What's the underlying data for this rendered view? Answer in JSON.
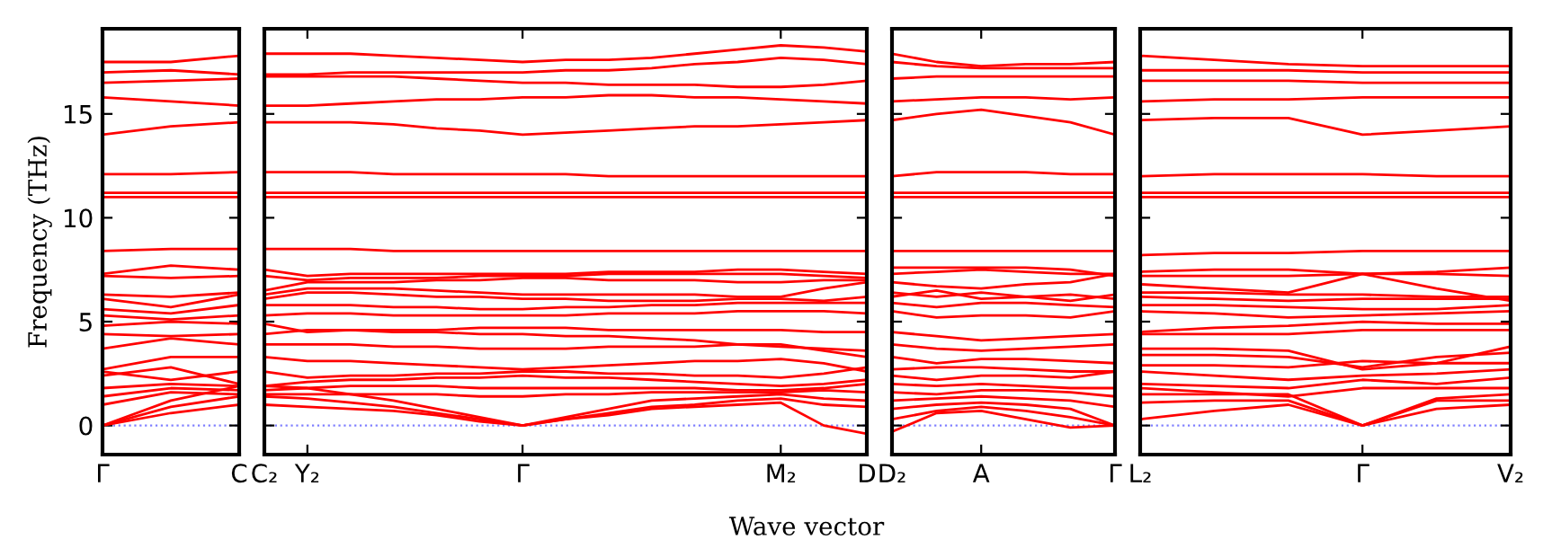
{
  "chart_data": [
    {
      "type": "line",
      "ylabel": "Frequency (THz)",
      "categories": [
        "Γ",
        null,
        "C"
      ],
      "ylim": [
        -1.4,
        19.1
      ],
      "yticks": [
        0,
        5,
        10,
        15
      ],
      "ref_lines": [
        {
          "axis": "y",
          "value": 0,
          "color": "#8080ff",
          "line_style": "dotted"
        }
      ],
      "series": [
        {
          "color": "#ff0000",
          "values": [
            17.5,
            17.5,
            17.8
          ]
        },
        {
          "color": "#ff0000",
          "values": [
            17.0,
            17.1,
            16.9
          ]
        },
        {
          "color": "#ff0000",
          "values": [
            16.5,
            16.6,
            16.7
          ]
        },
        {
          "color": "#ff0000",
          "values": [
            15.8,
            15.6,
            15.4
          ]
        },
        {
          "color": "#ff0000",
          "values": [
            14.0,
            14.4,
            14.6
          ]
        },
        {
          "color": "#ff0000",
          "values": [
            12.1,
            12.1,
            12.2
          ]
        },
        {
          "color": "#ff0000",
          "values": [
            11.2,
            11.2,
            11.2
          ]
        },
        {
          "color": "#ff0000",
          "values": [
            11.0,
            11.0,
            11.0
          ]
        },
        {
          "color": "#ff0000",
          "values": [
            8.4,
            8.5,
            8.5
          ]
        },
        {
          "color": "#ff0000",
          "values": [
            7.3,
            7.7,
            7.5
          ]
        },
        {
          "color": "#ff0000",
          "values": [
            7.2,
            7.1,
            7.2
          ]
        },
        {
          "color": "#ff0000",
          "values": [
            6.3,
            6.2,
            6.4
          ]
        },
        {
          "color": "#ff0000",
          "values": [
            6.1,
            5.7,
            6.3
          ]
        },
        {
          "color": "#ff0000",
          "values": [
            5.6,
            5.4,
            5.8
          ]
        },
        {
          "color": "#ff0000",
          "values": [
            5.3,
            5.1,
            5.3
          ]
        },
        {
          "color": "#ff0000",
          "values": [
            4.8,
            5.0,
            4.9
          ]
        },
        {
          "color": "#ff0000",
          "values": [
            4.4,
            4.3,
            4.4
          ]
        },
        {
          "color": "#ff0000",
          "values": [
            3.7,
            4.2,
            3.9
          ]
        },
        {
          "color": "#ff0000",
          "values": [
            2.7,
            3.3,
            3.3
          ]
        },
        {
          "color": "#ff0000",
          "values": [
            2.4,
            2.8,
            2.0
          ]
        },
        {
          "color": "#ff0000",
          "values": [
            2.6,
            2.2,
            2.6
          ]
        },
        {
          "color": "#ff0000",
          "values": [
            1.8,
            2.0,
            1.9
          ]
        },
        {
          "color": "#ff0000",
          "values": [
            1.4,
            1.8,
            1.7
          ]
        },
        {
          "color": "#ff0000",
          "values": [
            1.0,
            1.6,
            1.5
          ]
        },
        {
          "color": "#ff0000",
          "values": [
            0,
            1.2,
            1.9
          ]
        },
        {
          "color": "#ff0000",
          "values": [
            0,
            0.9,
            1.4
          ]
        },
        {
          "color": "#ff0000",
          "values": [
            0,
            0.6,
            1.0
          ]
        }
      ]
    },
    {
      "type": "line",
      "xlabel": "Wave vector",
      "tick_labels": "x",
      "categories": [
        "C₂",
        "Y₂",
        null,
        null,
        null,
        null,
        "Γ",
        null,
        null,
        null,
        null,
        null,
        "M₂",
        null,
        "D"
      ],
      "ylim": [
        -1.4,
        19.1
      ],
      "yticks": [
        0,
        5,
        10,
        15
      ],
      "ref_lines": [
        {
          "axis": "y",
          "value": 0,
          "color": "#8080ff",
          "line_style": "dotted"
        }
      ],
      "series": [
        {
          "color": "#ff0000",
          "values": [
            17.9,
            17.9,
            17.9,
            17.8,
            17.7,
            17.6,
            17.5,
            17.6,
            17.6,
            17.7,
            17.9,
            18.1,
            18.3,
            18.2,
            18.0
          ]
        },
        {
          "color": "#ff0000",
          "values": [
            16.9,
            16.9,
            17.0,
            17.0,
            17.0,
            17.0,
            17.0,
            17.1,
            17.1,
            17.2,
            17.4,
            17.5,
            17.7,
            17.6,
            17.4
          ]
        },
        {
          "color": "#ff0000",
          "values": [
            16.8,
            16.8,
            16.8,
            16.8,
            16.7,
            16.6,
            16.5,
            16.5,
            16.4,
            16.4,
            16.4,
            16.3,
            16.3,
            16.4,
            16.6
          ]
        },
        {
          "color": "#ff0000",
          "values": [
            15.4,
            15.4,
            15.5,
            15.6,
            15.7,
            15.7,
            15.8,
            15.8,
            15.9,
            15.9,
            15.8,
            15.8,
            15.7,
            15.6,
            15.5
          ]
        },
        {
          "color": "#ff0000",
          "values": [
            14.6,
            14.6,
            14.6,
            14.5,
            14.3,
            14.2,
            14.0,
            14.1,
            14.2,
            14.3,
            14.4,
            14.4,
            14.5,
            14.6,
            14.7
          ]
        },
        {
          "color": "#ff0000",
          "values": [
            12.2,
            12.2,
            12.2,
            12.1,
            12.1,
            12.1,
            12.1,
            12.1,
            12.0,
            12.0,
            12.0,
            12.0,
            12.0,
            12.0,
            12.0
          ]
        },
        {
          "color": "#ff0000",
          "values": [
            11.2,
            11.2,
            11.2,
            11.2,
            11.2,
            11.2,
            11.2,
            11.2,
            11.2,
            11.2,
            11.2,
            11.2,
            11.2,
            11.2,
            11.2
          ]
        },
        {
          "color": "#ff0000",
          "values": [
            11.0,
            11.0,
            11.0,
            11.0,
            11.0,
            11.0,
            11.0,
            11.0,
            11.0,
            11.0,
            11.0,
            11.0,
            11.0,
            11.0,
            11.0
          ]
        },
        {
          "color": "#ff0000",
          "values": [
            8.5,
            8.5,
            8.5,
            8.4,
            8.4,
            8.4,
            8.4,
            8.4,
            8.4,
            8.4,
            8.4,
            8.4,
            8.4,
            8.4,
            8.4
          ]
        },
        {
          "color": "#ff0000",
          "values": [
            7.5,
            7.2,
            7.3,
            7.3,
            7.3,
            7.3,
            7.3,
            7.3,
            7.4,
            7.4,
            7.4,
            7.5,
            7.5,
            7.4,
            7.3
          ]
        },
        {
          "color": "#ff0000",
          "values": [
            7.2,
            7.0,
            7.1,
            7.1,
            7.1,
            7.2,
            7.2,
            7.2,
            7.3,
            7.3,
            7.3,
            7.3,
            7.3,
            7.2,
            7.1
          ]
        },
        {
          "color": "#ff0000",
          "values": [
            6.5,
            6.9,
            6.9,
            6.9,
            7.0,
            7.0,
            7.1,
            7.1,
            7.0,
            7.0,
            7.0,
            6.9,
            6.9,
            7.0,
            7.0
          ]
        },
        {
          "color": "#ff0000",
          "values": [
            6.3,
            6.6,
            6.6,
            6.6,
            6.5,
            6.4,
            6.3,
            6.3,
            6.3,
            6.3,
            6.3,
            6.2,
            6.2,
            6.6,
            6.9
          ]
        },
        {
          "color": "#ff0000",
          "values": [
            6.1,
            6.4,
            6.4,
            6.3,
            6.2,
            6.2,
            6.1,
            6.1,
            6.0,
            6.0,
            6.0,
            6.1,
            6.1,
            6.0,
            6.2
          ]
        },
        {
          "color": "#ff0000",
          "values": [
            5.8,
            5.8,
            5.8,
            5.7,
            5.7,
            5.6,
            5.6,
            5.7,
            5.7,
            5.8,
            5.8,
            5.9,
            5.9,
            5.9,
            5.9
          ]
        },
        {
          "color": "#ff0000",
          "values": [
            5.3,
            5.4,
            5.4,
            5.3,
            5.3,
            5.3,
            5.3,
            5.3,
            5.4,
            5.4,
            5.4,
            5.5,
            5.5,
            5.5,
            5.4
          ]
        },
        {
          "color": "#ff0000",
          "values": [
            4.9,
            4.5,
            4.6,
            4.6,
            4.6,
            4.7,
            4.7,
            4.7,
            4.6,
            4.6,
            4.6,
            4.6,
            4.6,
            4.5,
            4.5
          ]
        },
        {
          "color": "#ff0000",
          "values": [
            4.4,
            4.6,
            4.6,
            4.5,
            4.5,
            4.4,
            4.4,
            4.3,
            4.3,
            4.2,
            4.1,
            3.9,
            3.8,
            3.7,
            3.6
          ]
        },
        {
          "color": "#ff0000",
          "values": [
            3.9,
            3.9,
            3.9,
            3.8,
            3.8,
            3.7,
            3.7,
            3.7,
            3.8,
            3.8,
            3.8,
            3.9,
            3.9,
            3.6,
            3.3
          ]
        },
        {
          "color": "#ff0000",
          "values": [
            3.3,
            3.1,
            3.1,
            3.0,
            2.9,
            2.8,
            2.7,
            2.8,
            2.9,
            3.0,
            3.1,
            3.1,
            3.2,
            3.0,
            2.6
          ]
        },
        {
          "color": "#ff0000",
          "values": [
            2.6,
            2.3,
            2.4,
            2.4,
            2.5,
            2.5,
            2.6,
            2.6,
            2.5,
            2.5,
            2.4,
            2.4,
            2.3,
            2.5,
            2.8
          ]
        },
        {
          "color": "#ff0000",
          "values": [
            1.9,
            2.1,
            2.2,
            2.2,
            2.3,
            2.3,
            2.4,
            2.3,
            2.3,
            2.2,
            2.1,
            2.0,
            1.9,
            2.0,
            2.2
          ]
        },
        {
          "color": "#ff0000",
          "values": [
            1.7,
            1.8,
            1.9,
            1.9,
            1.9,
            1.8,
            1.8,
            1.8,
            1.8,
            1.8,
            1.8,
            1.7,
            1.7,
            1.8,
            2.0
          ]
        },
        {
          "color": "#ff0000",
          "values": [
            1.5,
            1.5,
            1.5,
            1.5,
            1.5,
            1.4,
            1.4,
            1.5,
            1.5,
            1.6,
            1.6,
            1.6,
            1.6,
            1.7,
            1.6
          ]
        },
        {
          "color": "#ff0000",
          "values": [
            1.9,
            1.8,
            1.5,
            1.2,
            0.8,
            0.4,
            0,
            0.4,
            0.8,
            1.2,
            1.3,
            1.4,
            1.5,
            1.3,
            1.2
          ]
        },
        {
          "color": "#ff0000",
          "values": [
            1.4,
            1.3,
            1.1,
            0.9,
            0.6,
            0.3,
            0,
            0.3,
            0.6,
            0.9,
            1.0,
            1.2,
            1.3,
            1.0,
            0.9
          ]
        },
        {
          "color": "#ff0000",
          "values": [
            1.0,
            0.9,
            0.8,
            0.7,
            0.5,
            0.2,
            0,
            0.3,
            0.5,
            0.8,
            0.9,
            1.0,
            1.1,
            0.0,
            -0.4
          ]
        }
      ]
    },
    {
      "type": "line",
      "tick_labels": "x",
      "categories": [
        "D₂",
        null,
        "A",
        null,
        null,
        "Γ"
      ],
      "ylim": [
        -1.4,
        19.1
      ],
      "yticks": [
        0,
        5,
        10,
        15
      ],
      "ref_lines": [
        {
          "axis": "y",
          "value": 0,
          "color": "#8080ff",
          "line_style": "dotted"
        }
      ],
      "series": [
        {
          "color": "#ff0000",
          "values": [
            17.9,
            17.5,
            17.3,
            17.4,
            17.4,
            17.5
          ]
        },
        {
          "color": "#ff0000",
          "values": [
            17.5,
            17.3,
            17.2,
            17.2,
            17.2,
            17.2
          ]
        },
        {
          "color": "#ff0000",
          "values": [
            16.7,
            16.8,
            16.8,
            16.8,
            16.8,
            16.8
          ]
        },
        {
          "color": "#ff0000",
          "values": [
            15.6,
            15.7,
            15.8,
            15.8,
            15.7,
            15.8
          ]
        },
        {
          "color": "#ff0000",
          "values": [
            14.7,
            15.0,
            15.2,
            14.9,
            14.6,
            14.0
          ]
        },
        {
          "color": "#ff0000",
          "values": [
            12.0,
            12.2,
            12.2,
            12.2,
            12.1,
            12.1
          ]
        },
        {
          "color": "#ff0000",
          "values": [
            11.2,
            11.2,
            11.2,
            11.2,
            11.2,
            11.2
          ]
        },
        {
          "color": "#ff0000",
          "values": [
            11.0,
            11.0,
            11.0,
            11.0,
            11.0,
            11.0
          ]
        },
        {
          "color": "#ff0000",
          "values": [
            8.4,
            8.4,
            8.4,
            8.4,
            8.4,
            8.4
          ]
        },
        {
          "color": "#ff0000",
          "values": [
            7.6,
            7.6,
            7.6,
            7.6,
            7.5,
            7.2
          ]
        },
        {
          "color": "#ff0000",
          "values": [
            7.3,
            7.4,
            7.5,
            7.4,
            7.3,
            7.3
          ]
        },
        {
          "color": "#ff0000",
          "values": [
            6.9,
            6.7,
            6.6,
            6.8,
            6.9,
            7.3
          ]
        },
        {
          "color": "#ff0000",
          "values": [
            6.4,
            6.2,
            6.4,
            6.2,
            6.0,
            6.3
          ]
        },
        {
          "color": "#ff0000",
          "values": [
            6.2,
            6.5,
            6.1,
            6.2,
            6.3,
            6.1
          ]
        },
        {
          "color": "#ff0000",
          "values": [
            5.9,
            5.7,
            5.9,
            5.9,
            5.8,
            5.7
          ]
        },
        {
          "color": "#ff0000",
          "values": [
            5.5,
            5.2,
            5.3,
            5.3,
            5.2,
            5.5
          ]
        },
        {
          "color": "#ff0000",
          "values": [
            4.5,
            4.3,
            4.1,
            4.2,
            4.3,
            4.4
          ]
        },
        {
          "color": "#ff0000",
          "values": [
            3.9,
            3.7,
            3.6,
            3.7,
            3.8,
            3.9
          ]
        },
        {
          "color": "#ff0000",
          "values": [
            3.3,
            3.0,
            3.2,
            3.2,
            3.1,
            3.0
          ]
        },
        {
          "color": "#ff0000",
          "values": [
            2.7,
            2.8,
            2.8,
            2.7,
            2.6,
            2.6
          ]
        },
        {
          "color": "#ff0000",
          "values": [
            2.4,
            2.2,
            2.4,
            2.4,
            2.3,
            2.6
          ]
        },
        {
          "color": "#ff0000",
          "values": [
            2.0,
            1.9,
            2.0,
            1.9,
            1.8,
            1.8
          ]
        },
        {
          "color": "#ff0000",
          "values": [
            1.6,
            1.5,
            1.7,
            1.7,
            1.6,
            1.4
          ]
        },
        {
          "color": "#ff0000",
          "values": [
            1.2,
            1.3,
            1.4,
            1.3,
            1.2,
            0.9
          ]
        },
        {
          "color": "#ff0000",
          "values": [
            0.8,
            1.0,
            1.1,
            1.0,
            0.8,
            0
          ]
        },
        {
          "color": "#ff0000",
          "values": [
            0.3,
            0.7,
            0.9,
            0.7,
            0.4,
            0
          ]
        },
        {
          "color": "#ff0000",
          "values": [
            -0.3,
            0.6,
            0.7,
            0.3,
            -0.1,
            0
          ]
        }
      ]
    },
    {
      "type": "line",
      "tick_labels": "x",
      "categories": [
        "L₂",
        null,
        null,
        "Γ",
        null,
        "V₂"
      ],
      "ylim": [
        -1.4,
        19.1
      ],
      "yticks": [
        0,
        5,
        10,
        15
      ],
      "ref_lines": [
        {
          "axis": "y",
          "value": 0,
          "color": "#8080ff",
          "line_style": "dotted"
        }
      ],
      "series": [
        {
          "color": "#ff0000",
          "values": [
            17.8,
            17.6,
            17.4,
            17.3,
            17.3,
            17.3
          ]
        },
        {
          "color": "#ff0000",
          "values": [
            17.1,
            17.1,
            17.1,
            17.0,
            17.0,
            17.0
          ]
        },
        {
          "color": "#ff0000",
          "values": [
            16.6,
            16.6,
            16.6,
            16.5,
            16.5,
            16.5
          ]
        },
        {
          "color": "#ff0000",
          "values": [
            15.6,
            15.7,
            15.7,
            15.8,
            15.8,
            15.8
          ]
        },
        {
          "color": "#ff0000",
          "values": [
            14.7,
            14.8,
            14.8,
            14.0,
            14.2,
            14.4
          ]
        },
        {
          "color": "#ff0000",
          "values": [
            12.0,
            12.1,
            12.1,
            12.1,
            12.0,
            12.0
          ]
        },
        {
          "color": "#ff0000",
          "values": [
            11.2,
            11.2,
            11.2,
            11.2,
            11.2,
            11.2
          ]
        },
        {
          "color": "#ff0000",
          "values": [
            11.0,
            11.0,
            11.0,
            11.0,
            11.0,
            11.0
          ]
        },
        {
          "color": "#ff0000",
          "values": [
            8.2,
            8.3,
            8.3,
            8.4,
            8.4,
            8.4
          ]
        },
        {
          "color": "#ff0000",
          "values": [
            7.4,
            7.5,
            7.5,
            7.3,
            7.4,
            7.6
          ]
        },
        {
          "color": "#ff0000",
          "values": [
            7.2,
            7.2,
            7.2,
            7.3,
            7.3,
            7.2
          ]
        },
        {
          "color": "#ff0000",
          "values": [
            6.8,
            6.6,
            6.4,
            7.3,
            6.6,
            6.0
          ]
        },
        {
          "color": "#ff0000",
          "values": [
            6.4,
            6.4,
            6.3,
            6.3,
            6.2,
            6.2
          ]
        },
        {
          "color": "#ff0000",
          "values": [
            6.2,
            6.1,
            6.0,
            6.1,
            6.1,
            6.1
          ]
        },
        {
          "color": "#ff0000",
          "values": [
            5.8,
            5.8,
            5.7,
            5.6,
            5.6,
            5.8
          ]
        },
        {
          "color": "#ff0000",
          "values": [
            5.5,
            5.4,
            5.2,
            5.3,
            5.4,
            5.5
          ]
        },
        {
          "color": "#ff0000",
          "values": [
            4.5,
            4.7,
            4.8,
            5.0,
            4.9,
            4.9
          ]
        },
        {
          "color": "#ff0000",
          "values": [
            4.4,
            4.4,
            4.4,
            4.6,
            4.6,
            4.6
          ]
        },
        {
          "color": "#ff0000",
          "values": [
            3.7,
            3.7,
            3.6,
            2.7,
            3.0,
            3.8
          ]
        },
        {
          "color": "#ff0000",
          "values": [
            3.4,
            3.4,
            3.3,
            2.8,
            3.3,
            3.5
          ]
        },
        {
          "color": "#ff0000",
          "values": [
            2.9,
            2.9,
            2.8,
            3.1,
            3.0,
            3.0
          ]
        },
        {
          "color": "#ff0000",
          "values": [
            2.6,
            2.4,
            2.2,
            2.4,
            2.5,
            2.7
          ]
        },
        {
          "color": "#ff0000",
          "values": [
            2.0,
            1.9,
            1.8,
            2.2,
            2.0,
            2.3
          ]
        },
        {
          "color": "#ff0000",
          "values": [
            1.8,
            1.6,
            1.4,
            1.8,
            1.8,
            1.8
          ]
        },
        {
          "color": "#ff0000",
          "values": [
            1.5,
            1.5,
            1.5,
            0,
            1.3,
            1.5
          ]
        },
        {
          "color": "#ff0000",
          "values": [
            1.1,
            1.2,
            1.2,
            0,
            1.2,
            1.2
          ]
        },
        {
          "color": "#ff0000",
          "values": [
            0.3,
            0.7,
            1.0,
            0,
            0.8,
            1.0
          ]
        }
      ]
    }
  ]
}
